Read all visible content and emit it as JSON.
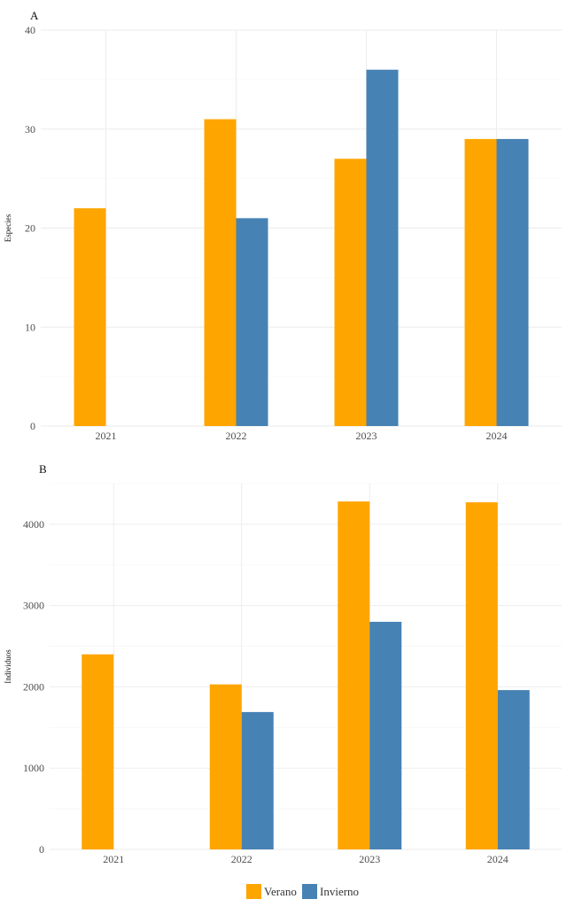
{
  "legend": {
    "items": [
      {
        "label": "Verano",
        "color": "#FFA500"
      },
      {
        "label": "Invierno",
        "color": "#4682B4"
      }
    ]
  },
  "chart_data": [
    {
      "type": "bar",
      "panel_label": "A",
      "categories": [
        "2021",
        "2022",
        "2023",
        "2024"
      ],
      "ylabel": "Especies",
      "xlabel": "",
      "ylim": [
        0,
        40
      ],
      "yticks": [
        0,
        10,
        20,
        30,
        40
      ],
      "grid": true,
      "series": [
        {
          "name": "Verano",
          "color": "#FFA500",
          "values": [
            22,
            31,
            27,
            29
          ]
        },
        {
          "name": "Invierno",
          "color": "#4682B4",
          "values": [
            null,
            21,
            36,
            29
          ]
        }
      ]
    },
    {
      "type": "bar",
      "panel_label": "B",
      "categories": [
        "2021",
        "2022",
        "2023",
        "2024"
      ],
      "ylabel": "Individuos",
      "xlabel": "",
      "ylim": [
        0,
        4500
      ],
      "yticks": [
        0,
        1000,
        2000,
        3000,
        4000
      ],
      "grid": true,
      "series": [
        {
          "name": "Verano",
          "color": "#FFA500",
          "values": [
            2400,
            2030,
            4280,
            4270
          ]
        },
        {
          "name": "Invierno",
          "color": "#4682B4",
          "values": [
            null,
            1690,
            2800,
            1960
          ]
        }
      ]
    }
  ]
}
